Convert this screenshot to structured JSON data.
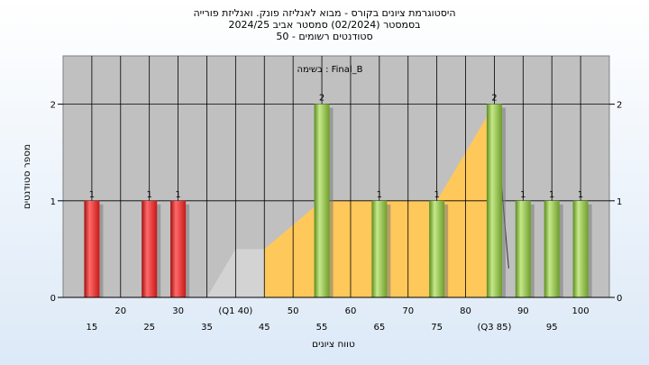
{
  "titles": {
    "line1": "היסטוגרמת ציונים בקורס - מבוא לאנליזה פונק. ואנליזת פורייה",
    "line2": "בסמסטר  (02/2024)  סמסטר אביב 2024/25",
    "line3": "סטודנטים רשומים - 50"
  },
  "chart_data": {
    "type": "bar",
    "annotation": "בשימה : Final_B",
    "xlabel": "טווח ציונים",
    "ylabel": "מספר סטודנטים",
    "x_ticks_upper": [
      "20",
      "30",
      "(Q1 40)",
      "50",
      "60",
      "70",
      "80",
      "90",
      "100"
    ],
    "x_ticks_lower": [
      "15",
      "25",
      "35",
      "45",
      "55",
      "65",
      "75",
      "(Q3 85)",
      "95"
    ],
    "ylim": [
      0,
      2.5
    ],
    "y_ticks": [
      0,
      1,
      2
    ],
    "grid": true,
    "bars": [
      {
        "x": 15,
        "value": 1,
        "label": "1",
        "color": "red"
      },
      {
        "x": 25,
        "value": 1,
        "label": "1",
        "color": "red"
      },
      {
        "x": 30,
        "value": 1,
        "label": "1",
        "color": "red"
      },
      {
        "x": 55,
        "value": 2,
        "label": "2",
        "color": "green"
      },
      {
        "x": 65,
        "value": 1,
        "label": "1",
        "color": "green"
      },
      {
        "x": 75,
        "value": 1,
        "label": "1",
        "color": "green"
      },
      {
        "x": 85,
        "value": 2,
        "label": "2",
        "color": "green"
      },
      {
        "x": 90,
        "value": 1,
        "label": "1",
        "color": "green"
      },
      {
        "x": 95,
        "value": 1,
        "label": "1",
        "color": "green"
      },
      {
        "x": 100,
        "value": 1,
        "label": "1",
        "color": "green"
      }
    ],
    "quartile_band": [
      {
        "x": 35,
        "value": 0
      },
      {
        "x": 40,
        "value": 0.5
      },
      {
        "x": 45,
        "value": 0.5
      },
      {
        "x": 55,
        "value": 1
      },
      {
        "x": 75,
        "value": 1
      },
      {
        "x": 85,
        "value": 2
      },
      {
        "x": 87.5,
        "value": 0.3
      }
    ],
    "colors": {
      "plot_bg": "#c0c0c0",
      "band_gray": "#d3d3d3",
      "band_yellow": "#ffc85a",
      "bar_red": "#e8312f",
      "bar_green": "#8cbf3f"
    }
  }
}
